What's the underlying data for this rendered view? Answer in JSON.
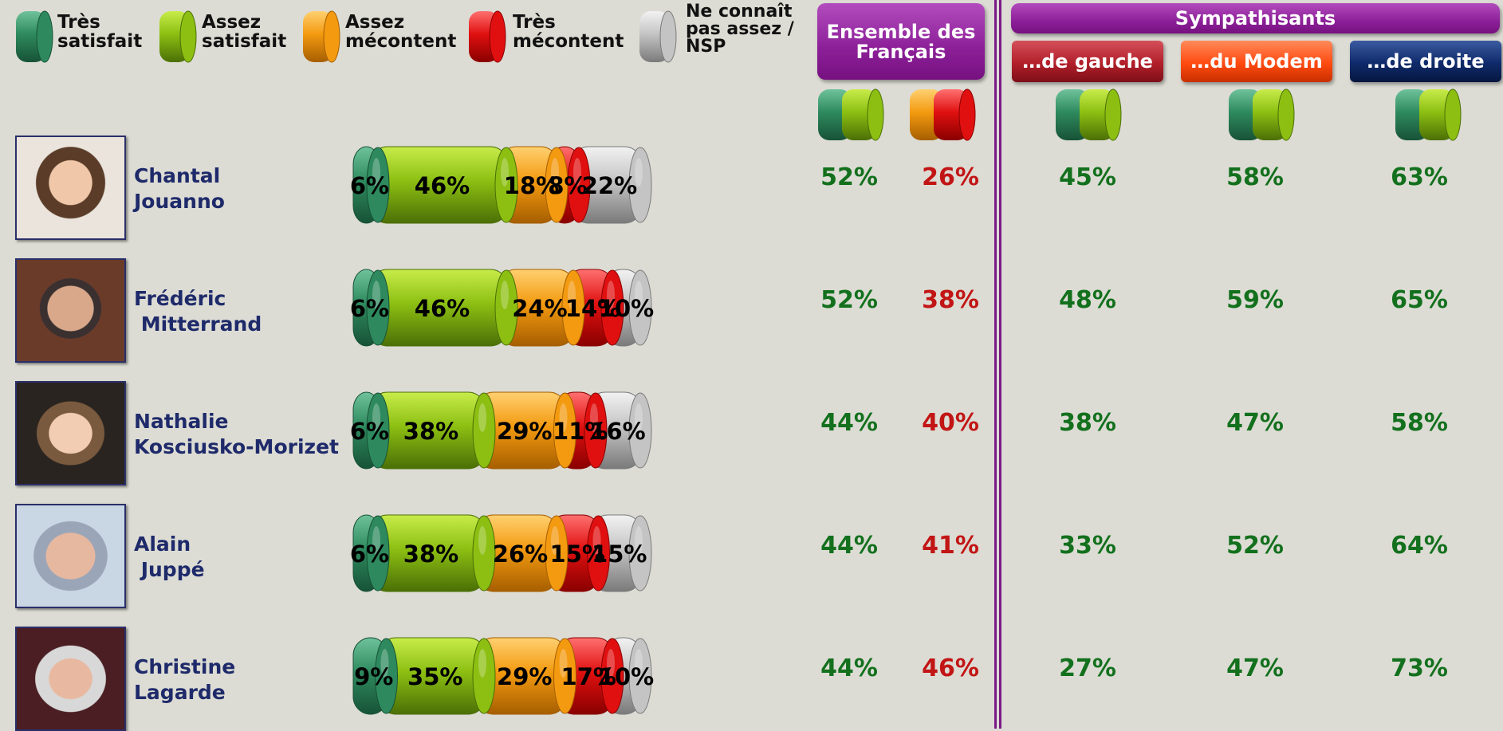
{
  "legend": {
    "items": [
      {
        "label": "Très\nsatisfait",
        "color": "#2e8a5e"
      },
      {
        "label": "Assez\nsatisfait",
        "color": "#8cbf12"
      },
      {
        "label": "Assez\nmécontent",
        "color": "#f39a10"
      },
      {
        "label": "Très\nmécontent",
        "color": "#e01010"
      },
      {
        "label": "Ne connaît\npas assez /\nNSP",
        "color": "#c4c4c4"
      }
    ]
  },
  "headers": {
    "ensemble": "Ensemble des\nFrançais",
    "sympathisants": "Sympathisants",
    "gauche": "…de gauche",
    "modem": "…du Modem",
    "droite": "…de droite"
  },
  "colors": {
    "gauche": "#b11f2a",
    "modem": "#ff4a10",
    "droite": "#0f2a6a",
    "purple": "#8c1f98",
    "positive": "#13701d",
    "negative": "#c21515"
  },
  "chart_data": {
    "type": "bar",
    "orientation": "horizontal-stacked",
    "categories": [
      "Très satisfait",
      "Assez satisfait",
      "Assez mécontent",
      "Très mécontent",
      "Ne connaît pas assez / NSP"
    ],
    "rows": [
      {
        "name": "Chantal\nJouanno",
        "values": [
          6,
          46,
          18,
          8,
          22
        ],
        "labels": [
          "6%",
          "46%",
          "18%",
          "8%",
          "22%"
        ],
        "satisfied": "52%",
        "unsatisfied": "26%",
        "gauche": "45%",
        "modem": "58%",
        "droite": "63%"
      },
      {
        "name": "Frédéric\n Mitterrand",
        "values": [
          6,
          46,
          24,
          14,
          10
        ],
        "labels": [
          "6%",
          "46%",
          "24%",
          "14%",
          "10%"
        ],
        "satisfied": "52%",
        "unsatisfied": "38%",
        "gauche": "48%",
        "modem": "59%",
        "droite": "65%"
      },
      {
        "name": "Nathalie\nKosciusko-Morizet",
        "values": [
          6,
          38,
          29,
          11,
          16
        ],
        "labels": [
          "6%",
          "38%",
          "29%",
          "11%",
          "16%"
        ],
        "satisfied": "44%",
        "unsatisfied": "40%",
        "gauche": "38%",
        "modem": "47%",
        "droite": "58%"
      },
      {
        "name": "Alain\n Juppé",
        "values": [
          6,
          38,
          26,
          15,
          15
        ],
        "labels": [
          "6%",
          "38%",
          "26%",
          "15%",
          "15%"
        ],
        "satisfied": "44%",
        "unsatisfied": "41%",
        "gauche": "33%",
        "modem": "52%",
        "droite": "64%"
      },
      {
        "name": "Christine\nLagarde",
        "values": [
          9,
          35,
          29,
          17,
          10
        ],
        "labels": [
          "9%",
          "35%",
          "29%",
          "17%",
          "10%"
        ],
        "satisfied": "44%",
        "unsatisfied": "46%",
        "gauche": "27%",
        "modem": "47%",
        "droite": "73%"
      }
    ]
  }
}
